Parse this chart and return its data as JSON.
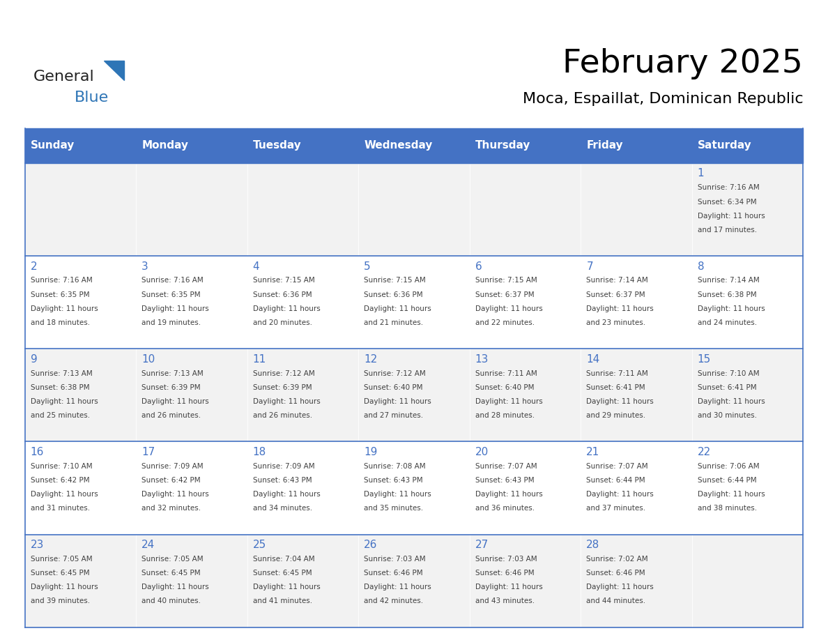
{
  "title": "February 2025",
  "subtitle": "Moca, Espaillat, Dominican Republic",
  "days_of_week": [
    "Sunday",
    "Monday",
    "Tuesday",
    "Wednesday",
    "Thursday",
    "Friday",
    "Saturday"
  ],
  "header_bg": "#4472C4",
  "header_text": "#FFFFFF",
  "cell_bg_even": "#F2F2F2",
  "cell_bg_odd": "#FFFFFF",
  "cell_border": "#4472C4",
  "day_num_color": "#4472C4",
  "info_color": "#404040",
  "title_color": "#000000",
  "subtitle_color": "#000000",
  "logo_general_color": "#222222",
  "logo_blue_color": "#2E75B6",
  "weeks": [
    [
      {
        "day": null,
        "sunrise": null,
        "sunset": null,
        "daylight": null
      },
      {
        "day": null,
        "sunrise": null,
        "sunset": null,
        "daylight": null
      },
      {
        "day": null,
        "sunrise": null,
        "sunset": null,
        "daylight": null
      },
      {
        "day": null,
        "sunrise": null,
        "sunset": null,
        "daylight": null
      },
      {
        "day": null,
        "sunrise": null,
        "sunset": null,
        "daylight": null
      },
      {
        "day": null,
        "sunrise": null,
        "sunset": null,
        "daylight": null
      },
      {
        "day": 1,
        "sunrise": "7:16 AM",
        "sunset": "6:34 PM",
        "daylight": "11 hours and 17 minutes."
      }
    ],
    [
      {
        "day": 2,
        "sunrise": "7:16 AM",
        "sunset": "6:35 PM",
        "daylight": "11 hours and 18 minutes."
      },
      {
        "day": 3,
        "sunrise": "7:16 AM",
        "sunset": "6:35 PM",
        "daylight": "11 hours and 19 minutes."
      },
      {
        "day": 4,
        "sunrise": "7:15 AM",
        "sunset": "6:36 PM",
        "daylight": "11 hours and 20 minutes."
      },
      {
        "day": 5,
        "sunrise": "7:15 AM",
        "sunset": "6:36 PM",
        "daylight": "11 hours and 21 minutes."
      },
      {
        "day": 6,
        "sunrise": "7:15 AM",
        "sunset": "6:37 PM",
        "daylight": "11 hours and 22 minutes."
      },
      {
        "day": 7,
        "sunrise": "7:14 AM",
        "sunset": "6:37 PM",
        "daylight": "11 hours and 23 minutes."
      },
      {
        "day": 8,
        "sunrise": "7:14 AM",
        "sunset": "6:38 PM",
        "daylight": "11 hours and 24 minutes."
      }
    ],
    [
      {
        "day": 9,
        "sunrise": "7:13 AM",
        "sunset": "6:38 PM",
        "daylight": "11 hours and 25 minutes."
      },
      {
        "day": 10,
        "sunrise": "7:13 AM",
        "sunset": "6:39 PM",
        "daylight": "11 hours and 26 minutes."
      },
      {
        "day": 11,
        "sunrise": "7:12 AM",
        "sunset": "6:39 PM",
        "daylight": "11 hours and 26 minutes."
      },
      {
        "day": 12,
        "sunrise": "7:12 AM",
        "sunset": "6:40 PM",
        "daylight": "11 hours and 27 minutes."
      },
      {
        "day": 13,
        "sunrise": "7:11 AM",
        "sunset": "6:40 PM",
        "daylight": "11 hours and 28 minutes."
      },
      {
        "day": 14,
        "sunrise": "7:11 AM",
        "sunset": "6:41 PM",
        "daylight": "11 hours and 29 minutes."
      },
      {
        "day": 15,
        "sunrise": "7:10 AM",
        "sunset": "6:41 PM",
        "daylight": "11 hours and 30 minutes."
      }
    ],
    [
      {
        "day": 16,
        "sunrise": "7:10 AM",
        "sunset": "6:42 PM",
        "daylight": "11 hours and 31 minutes."
      },
      {
        "day": 17,
        "sunrise": "7:09 AM",
        "sunset": "6:42 PM",
        "daylight": "11 hours and 32 minutes."
      },
      {
        "day": 18,
        "sunrise": "7:09 AM",
        "sunset": "6:43 PM",
        "daylight": "11 hours and 34 minutes."
      },
      {
        "day": 19,
        "sunrise": "7:08 AM",
        "sunset": "6:43 PM",
        "daylight": "11 hours and 35 minutes."
      },
      {
        "day": 20,
        "sunrise": "7:07 AM",
        "sunset": "6:43 PM",
        "daylight": "11 hours and 36 minutes."
      },
      {
        "day": 21,
        "sunrise": "7:07 AM",
        "sunset": "6:44 PM",
        "daylight": "11 hours and 37 minutes."
      },
      {
        "day": 22,
        "sunrise": "7:06 AM",
        "sunset": "6:44 PM",
        "daylight": "11 hours and 38 minutes."
      }
    ],
    [
      {
        "day": 23,
        "sunrise": "7:05 AM",
        "sunset": "6:45 PM",
        "daylight": "11 hours and 39 minutes."
      },
      {
        "day": 24,
        "sunrise": "7:05 AM",
        "sunset": "6:45 PM",
        "daylight": "11 hours and 40 minutes."
      },
      {
        "day": 25,
        "sunrise": "7:04 AM",
        "sunset": "6:45 PM",
        "daylight": "11 hours and 41 minutes."
      },
      {
        "day": 26,
        "sunrise": "7:03 AM",
        "sunset": "6:46 PM",
        "daylight": "11 hours and 42 minutes."
      },
      {
        "day": 27,
        "sunrise": "7:03 AM",
        "sunset": "6:46 PM",
        "daylight": "11 hours and 43 minutes."
      },
      {
        "day": 28,
        "sunrise": "7:02 AM",
        "sunset": "6:46 PM",
        "daylight": "11 hours and 44 minutes."
      },
      {
        "day": null,
        "sunrise": null,
        "sunset": null,
        "daylight": null
      }
    ]
  ]
}
